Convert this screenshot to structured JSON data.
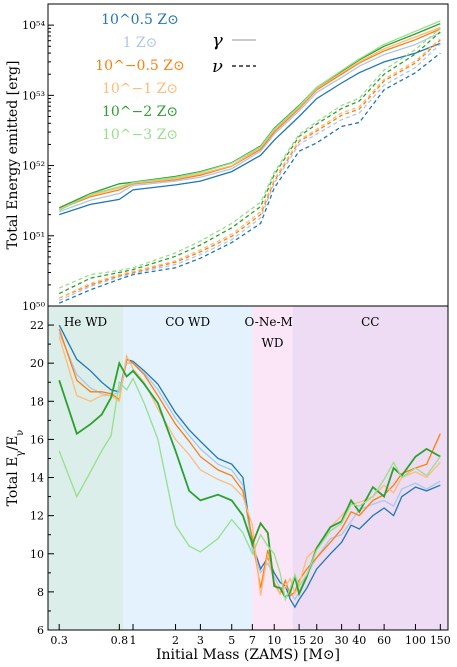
{
  "figure": {
    "colors": {
      "Z_0.5": "#1f77b4",
      "Z_0": "#aec7e8",
      "Z_-0.5": "#ff7f0e",
      "Z_-1": "#ffbb78",
      "Z_-2": "#2ca02c",
      "Z_-3": "#98df8a",
      "region_he": "#dbeee9",
      "region_co": "#e3f2fc",
      "region_one": "#fbe6f8",
      "region_cc": "#eddcf4"
    }
  },
  "chart_data": [
    {
      "type": "line",
      "ylabel": "Total Energy emitted [erg]",
      "yscale": "log",
      "ylim": [
        1e+50,
        2e+54
      ],
      "xscale": "log",
      "xlim": [
        0.25,
        170
      ],
      "y_tick_labels": [
        {
          "v": 1e+50,
          "label": "10⁵⁰"
        },
        {
          "v": 1e+51,
          "label": "10⁵¹"
        },
        {
          "v": 1e+52,
          "label": "10⁵²"
        },
        {
          "v": 1e+53,
          "label": "10⁵³"
        },
        {
          "v": 1e+54,
          "label": "10⁵⁴"
        }
      ],
      "legend_metallicity": [
        {
          "text": "10^0.5 Z⊙",
          "key": "Z_0.5"
        },
        {
          "text": "1 Z⊙",
          "key": "Z_0"
        },
        {
          "text": "10^−0.5 Z⊙",
          "key": "Z_-0.5"
        },
        {
          "text": "10^−1 Z⊙",
          "key": "Z_-1"
        },
        {
          "text": "10^−2 Z⊙",
          "key": "Z_-2"
        },
        {
          "text": "10^−3 Z⊙",
          "key": "Z_-3"
        }
      ],
      "legend_particles": [
        {
          "symbol": "γ",
          "style": "solid"
        },
        {
          "symbol": "ν",
          "style": "dashed"
        }
      ],
      "x": [
        0.3,
        0.5,
        0.8,
        1,
        2,
        3,
        5,
        8,
        10,
        15,
        20,
        30,
        40,
        60,
        100,
        150
      ],
      "series": [
        {
          "key": "Z_0.5",
          "kind": "gamma",
          "values": [
            2e+51,
            2.8e+51,
            3.3e+51,
            4.5e+51,
            5.3e+51,
            6e+51,
            8.2e+51,
            1.4e+52,
            2.3e+52,
            5e+52,
            9e+52,
            1.5e+53,
            2.1e+53,
            3e+53,
            4e+53,
            5.5e+53
          ]
        },
        {
          "key": "Z_0",
          "kind": "gamma",
          "values": [
            2.2e+51,
            3.2e+51,
            4e+51,
            5.2e+51,
            6e+51,
            6.8e+51,
            9e+51,
            1.6e+52,
            2.8e+52,
            6e+52,
            1.1e+53,
            1.8e+53,
            2.6e+53,
            3.8e+53,
            5.3e+53,
            7.8e+53
          ]
        },
        {
          "key": "Z_-0.5",
          "kind": "gamma",
          "values": [
            2.4e+51,
            3.6e+51,
            4.5e+51,
            5.5e+51,
            6.3e+51,
            7.3e+51,
            9.8e+51,
            1.7e+52,
            3e+52,
            6.5e+52,
            1.2e+53,
            2e+53,
            2.9e+53,
            4.3e+53,
            6.2e+53,
            8.8e+53
          ]
        },
        {
          "key": "Z_-1",
          "kind": "gamma",
          "values": [
            2.4e+51,
            3.8e+51,
            4.8e+51,
            5.6e+51,
            6.5e+51,
            7.6e+51,
            1e+52,
            1.8e+52,
            3.2e+52,
            6.8e+52,
            1.25e+53,
            2.1e+53,
            3e+53,
            4.6e+53,
            6.8e+53,
            9.3e+53
          ]
        },
        {
          "key": "Z_-2",
          "kind": "gamma",
          "values": [
            2.5e+51,
            4e+51,
            5.5e+51,
            5.8e+51,
            7e+51,
            8.2e+51,
            1.1e+52,
            1.9e+52,
            3.4e+52,
            7.2e+52,
            1.3e+53,
            2.2e+53,
            3.2e+53,
            5e+53,
            7.5e+53,
            1.05e+54
          ]
        },
        {
          "key": "Z_-3",
          "kind": "gamma",
          "values": [
            2.3e+51,
            3.9e+51,
            5e+51,
            5.7e+51,
            6.8e+51,
            8e+51,
            1.08e+52,
            1.85e+52,
            3.3e+52,
            7e+52,
            1.3e+53,
            2.25e+53,
            3.3e+53,
            5.3e+53,
            8.2e+53,
            1.15e+54
          ]
        },
        {
          "key": "Z_0.5",
          "kind": "nu",
          "values": [
            1.1e+50,
            1.7e+50,
            2.4e+50,
            2.8e+50,
            3.5e+50,
            4.8e+50,
            8e+50,
            1.5e+51,
            4.8e+51,
            1.6e+52,
            2.1e+52,
            3.6e+52,
            4.1e+52,
            1.2e+53,
            2.1e+53,
            4e+53
          ]
        },
        {
          "key": "Z_0",
          "kind": "nu",
          "values": [
            1.2e+50,
            1.9e+50,
            2.6e+50,
            2.9e+50,
            3.9e+50,
            5.4e+50,
            8.8e+50,
            1.8e+51,
            5.6e+51,
            2e+52,
            2.8e+52,
            4.5e+52,
            5.6e+52,
            1.4e+53,
            2.5e+53,
            5.4e+53
          ]
        },
        {
          "key": "Z_-0.5",
          "kind": "nu",
          "values": [
            1.3e+50,
            2e+50,
            2.7e+50,
            3e+50,
            4.2e+50,
            5.9e+50,
            9.8e+50,
            2e+51,
            6e+51,
            2.2e+52,
            3.1e+52,
            5.2e+52,
            6.4e+52,
            1.6e+53,
            2.9e+53,
            6.1e+53
          ]
        },
        {
          "key": "Z_-1",
          "kind": "nu",
          "values": [
            1.3e+50,
            2.1e+50,
            2.8e+50,
            3.1e+50,
            4.4e+50,
            6.3e+50,
            1.05e+51,
            2.2e+51,
            6.4e+51,
            2.3e+52,
            3.3e+52,
            5.6e+52,
            6.9e+52,
            1.7e+53,
            3.1e+53,
            6.4e+53
          ]
        },
        {
          "key": "Z_-2",
          "kind": "nu",
          "values": [
            1.5e+50,
            2.5e+50,
            3e+50,
            3.3e+50,
            5.1e+50,
            7.4e+50,
            1.3e+51,
            2.6e+51,
            7.4e+51,
            2.6e+52,
            3.9e+52,
            6.5e+52,
            8.3e+52,
            2e+53,
            3.9e+53,
            8e+53
          ]
        },
        {
          "key": "Z_-3",
          "kind": "nu",
          "values": [
            1.8e+50,
            2.8e+50,
            3.2e+50,
            3.5e+50,
            5.7e+50,
            8.4e+50,
            1.5e+51,
            3e+51,
            8e+51,
            2.8e+52,
            4.2e+52,
            7.2e+52,
            9.1e+52,
            2.3e+53,
            4.5e+53,
            9e+53
          ]
        }
      ]
    },
    {
      "type": "line",
      "ylabel": "Total E_γ/E_ν",
      "xlabel": "Initial Mass (ZAMS) [M⊙]",
      "xscale": "log",
      "xlim": [
        0.25,
        170
      ],
      "ylim": [
        6,
        23
      ],
      "x_tick_labels": [
        {
          "v": 0.3,
          "label": "0.3"
        },
        {
          "v": 0.8,
          "label": "0.8"
        },
        {
          "v": 1,
          "label": "1"
        },
        {
          "v": 2,
          "label": "2"
        },
        {
          "v": 3,
          "label": "3"
        },
        {
          "v": 5,
          "label": "5"
        },
        {
          "v": 7,
          "label": "7"
        },
        {
          "v": 10,
          "label": "10"
        },
        {
          "v": 15,
          "label": "15"
        },
        {
          "v": 20,
          "label": "20"
        },
        {
          "v": 30,
          "label": "30"
        },
        {
          "v": 40,
          "label": "40"
        },
        {
          "v": 60,
          "label": "60"
        },
        {
          "v": 100,
          "label": "100"
        },
        {
          "v": 150,
          "label": "150"
        }
      ],
      "y_tick_labels": [
        6,
        8,
        10,
        12,
        14,
        16,
        18,
        20,
        22
      ],
      "regions": [
        {
          "label": "He WD",
          "from": 0.25,
          "to": 0.85,
          "color_key": "region_he"
        },
        {
          "label": "CO WD",
          "from": 0.85,
          "to": 7,
          "color_key": "region_co"
        },
        {
          "label": "O-Ne-Mg",
          "label2": "WD",
          "from": 7,
          "to": 13.5,
          "color_key": "region_one"
        },
        {
          "label": "CC",
          "from": 13.5,
          "to": 170,
          "color_key": "region_cc"
        }
      ],
      "x": [
        0.3,
        0.4,
        0.5,
        0.6,
        0.7,
        0.8,
        0.9,
        1.0,
        1.2,
        1.5,
        2.0,
        2.5,
        3.0,
        4.0,
        5.0,
        6.0,
        7.0,
        8.0,
        9.0,
        10,
        11,
        12,
        13,
        14,
        15,
        17,
        20,
        25,
        30,
        35,
        40,
        50,
        60,
        70,
        80,
        100,
        120,
        150
      ],
      "series": [
        {
          "key": "Z_0.5",
          "values": [
            22.0,
            20.2,
            19.6,
            19.0,
            18.6,
            18.5,
            20.2,
            20.1,
            19.6,
            18.9,
            17.4,
            16.5,
            15.9,
            15.0,
            14.7,
            14.0,
            10.5,
            9.2,
            9.8,
            9.0,
            8.5,
            8.3,
            7.6,
            7.2,
            7.6,
            8.2,
            9.2,
            10.0,
            10.6,
            11.5,
            11.3,
            12.0,
            12.4,
            12.0,
            13.0,
            13.5,
            13.3,
            13.6
          ]
        },
        {
          "key": "Z_0",
          "values": [
            21.6,
            19.4,
            18.7,
            18.4,
            18.3,
            18.5,
            20.0,
            20.0,
            19.5,
            18.6,
            17.1,
            16.2,
            15.5,
            14.7,
            14.4,
            13.6,
            10.2,
            9.0,
            9.5,
            8.8,
            8.2,
            8.3,
            8.0,
            7.6,
            8.0,
            8.9,
            9.8,
            10.8,
            11.0,
            11.7,
            12.3,
            12.6,
            12.8,
            12.5,
            13.4,
            13.7,
            13.4,
            13.8
          ]
        },
        {
          "key": "Z_-0.5",
          "values": [
            21.8,
            19.1,
            18.5,
            18.5,
            18.4,
            18.1,
            20.2,
            20.0,
            19.4,
            18.3,
            16.8,
            15.9,
            15.1,
            14.4,
            14.1,
            13.3,
            10.8,
            8.2,
            10.2,
            8.5,
            7.9,
            8.6,
            7.8,
            8.0,
            8.6,
            9.2,
            9.8,
            10.6,
            11.3,
            12.2,
            12.0,
            12.8,
            13.1,
            13.6,
            14.2,
            14.5,
            14.7,
            16.3
          ]
        },
        {
          "key": "Z_-1",
          "values": [
            21.4,
            18.3,
            18.0,
            18.3,
            18.3,
            18.0,
            20.4,
            19.7,
            19.0,
            17.6,
            16.0,
            15.2,
            14.4,
            13.9,
            13.6,
            13.0,
            11.5,
            7.8,
            10.0,
            8.4,
            7.9,
            8.3,
            8.7,
            7.9,
            8.4,
            9.8,
            10.3,
            11.4,
            12.0,
            12.6,
            12.7,
            13.0,
            13.6,
            13.2,
            14.0,
            14.3,
            14.0,
            14.8
          ]
        },
        {
          "key": "Z_-2",
          "values": [
            19.1,
            16.3,
            16.8,
            17.3,
            18.2,
            20.0,
            19.3,
            19.6,
            18.9,
            17.9,
            15.4,
            13.3,
            12.8,
            13.1,
            12.8,
            12.0,
            10.5,
            11.6,
            11.1,
            8.3,
            8.2,
            7.7,
            8.0,
            8.8,
            7.9,
            8.8,
            10.3,
            11.4,
            11.7,
            12.8,
            12.2,
            13.5,
            13.0,
            14.5,
            14.1,
            15.1,
            15.5,
            15.1
          ]
        },
        {
          "key": "Z_-3",
          "values": [
            15.4,
            13.0,
            14.3,
            15.4,
            16.2,
            19.0,
            18.6,
            19.2,
            17.9,
            16.0,
            11.5,
            10.4,
            10.1,
            10.8,
            11.8,
            11.1,
            10.0,
            11.0,
            10.4,
            10.0,
            9.0,
            7.6,
            8.2,
            8.9,
            8.3,
            8.9,
            10.2,
            11.2,
            11.6,
            12.6,
            12.5,
            13.0,
            13.9,
            14.8,
            14.0,
            14.5,
            14.1,
            15.1
          ]
        }
      ]
    }
  ]
}
